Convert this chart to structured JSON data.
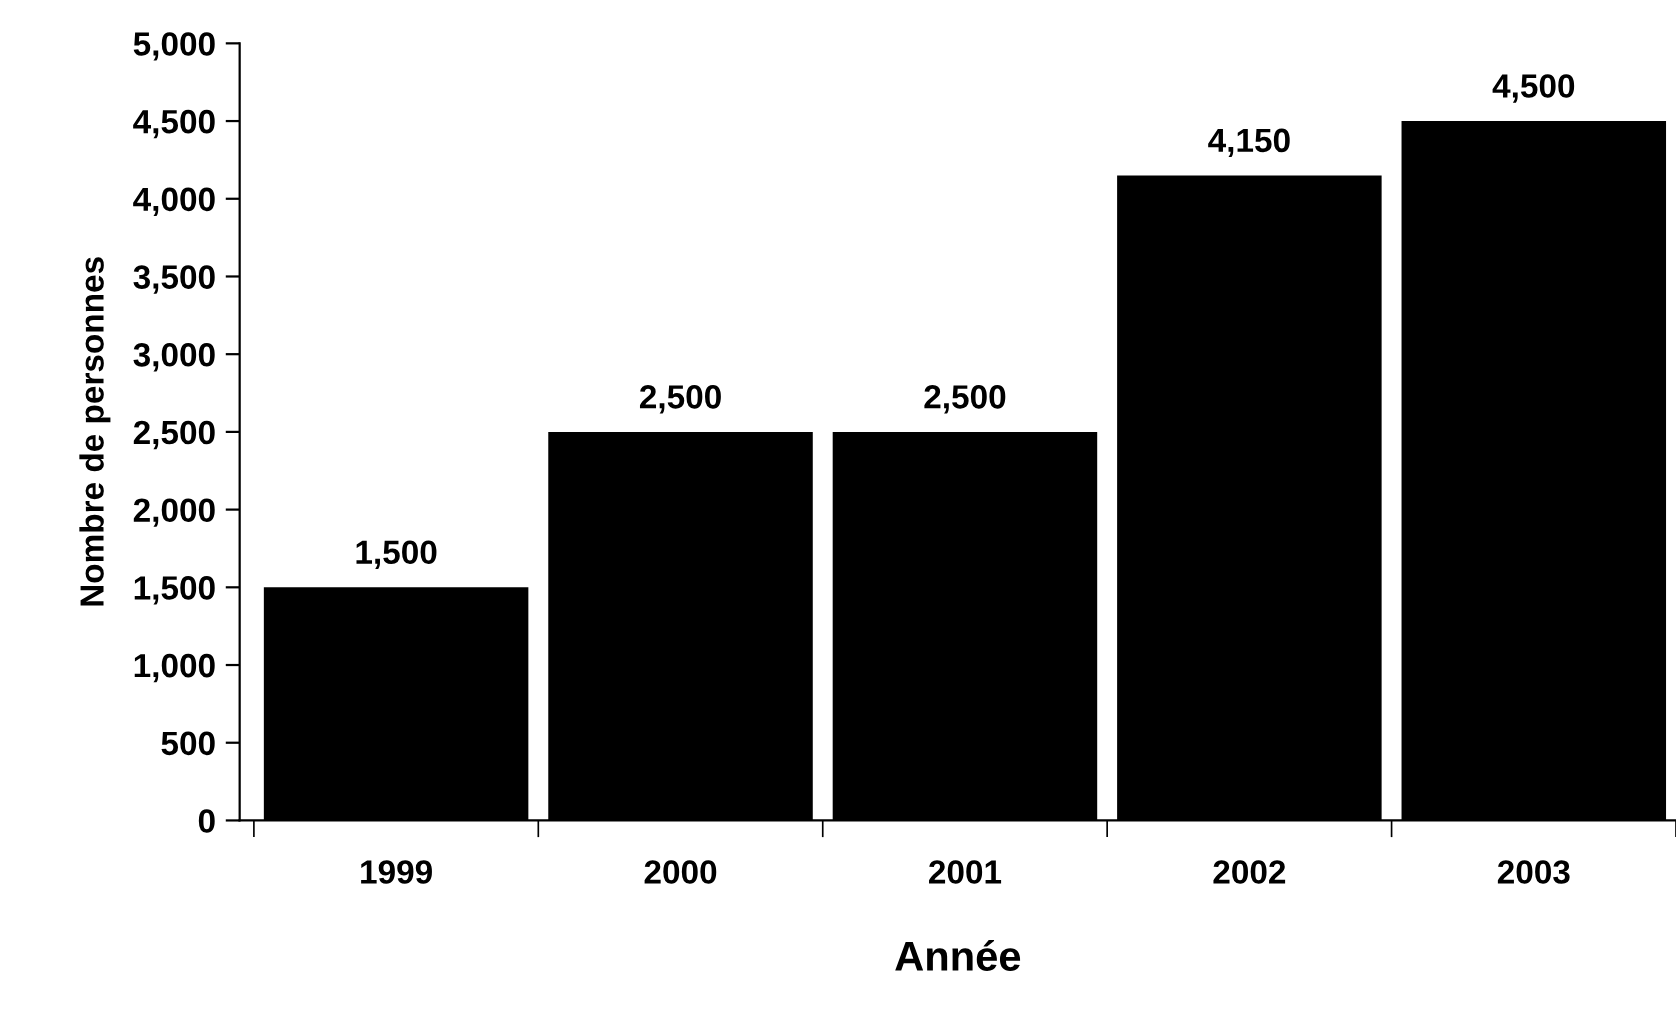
{
  "chart_data": {
    "type": "bar",
    "xlabel": "Année",
    "ylabel": "Nombre de personnes",
    "categories": [
      "1999",
      "2000",
      "2001",
      "2002",
      "2003"
    ],
    "values": [
      1500,
      2500,
      2500,
      4150,
      4500
    ],
    "color": "#000000",
    "value_labels": [
      "1,500",
      "2,500",
      "2,500",
      "4,150",
      "4,500"
    ],
    "ylim": [
      0,
      5000
    ],
    "yticks": [
      0,
      500,
      {
        "value": 1000,
        "label": "1,000"
      },
      {
        "value": 1500,
        "label": "1,500"
      },
      {
        "value": 2000,
        "label": "2,000"
      },
      {
        "value": 2500,
        "label": "2,500"
      },
      {
        "value": 3000,
        "label": "3,000"
      },
      {
        "value": 3500,
        "label": "3,500"
      },
      {
        "value": 4000,
        "label": "4,000"
      },
      {
        "value": 4500,
        "label": "4,500"
      },
      {
        "value": 5000,
        "label": "5,000"
      }
    ],
    "grid": false,
    "legend": false
  }
}
